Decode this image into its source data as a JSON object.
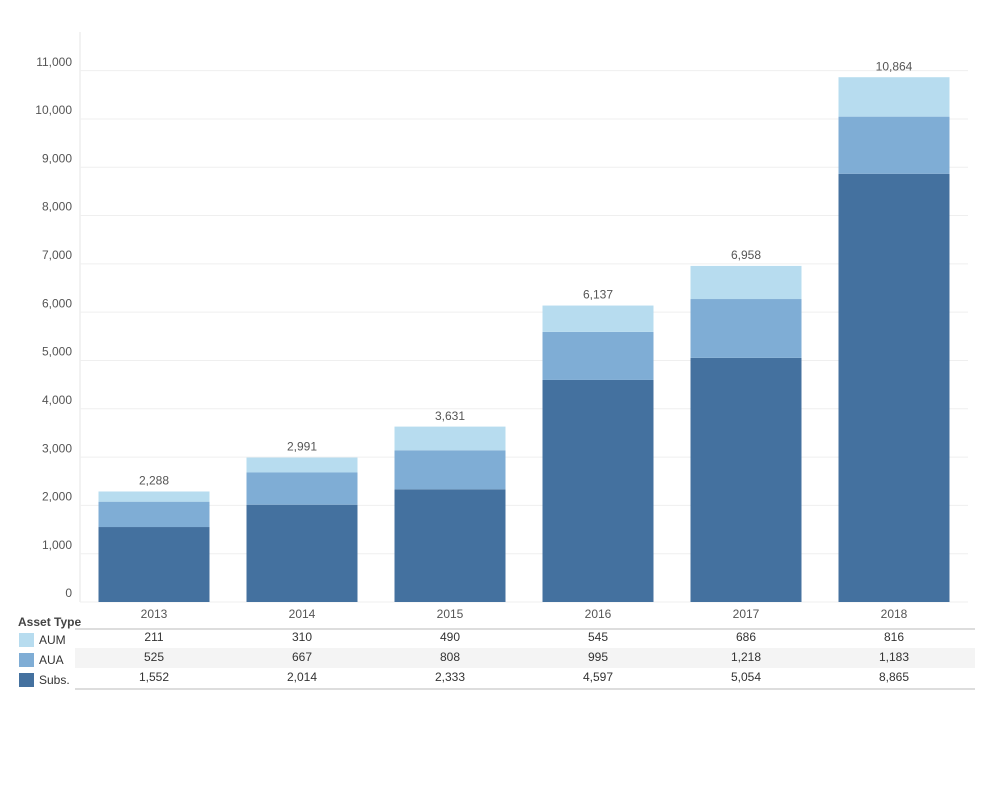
{
  "chart_data": {
    "type": "stacked_bar",
    "categories": [
      "2013",
      "2014",
      "2015",
      "2016",
      "2017",
      "2018"
    ],
    "series": [
      {
        "name": "AUM",
        "color": "#b7dcef",
        "values": [
          211,
          310,
          490,
          545,
          686,
          816
        ],
        "value_labels": [
          "211",
          "310",
          "490",
          "545",
          "686",
          "816"
        ]
      },
      {
        "name": "AUA",
        "color": "#7fadd5",
        "values": [
          525,
          667,
          808,
          995,
          1218,
          1183
        ],
        "value_labels": [
          "525",
          "667",
          "808",
          "995",
          "1,218",
          "1,183"
        ]
      },
      {
        "name": "Subs.",
        "color": "#44719f",
        "values": [
          1552,
          2014,
          2333,
          4597,
          5054,
          8865
        ],
        "value_labels": [
          "1,552",
          "2,014",
          "2,333",
          "4,597",
          "5,054",
          "8,865"
        ]
      }
    ],
    "totals": {
      "values": [
        2288,
        2991,
        3631,
        6137,
        6958,
        10864
      ],
      "value_labels": [
        "2,288",
        "2,991",
        "3,631",
        "6,137",
        "6,958",
        "10,864"
      ]
    },
    "legend_title": "Asset Type",
    "ylim": [
      0,
      11800
    ],
    "yticks": [
      0,
      {
        "value": 1000,
        "label": "1,000"
      },
      {
        "value": 2000,
        "label": "2,000"
      },
      {
        "value": 3000,
        "label": "3,000"
      },
      {
        "value": 4000,
        "label": "4,000"
      },
      {
        "value": 5000,
        "label": "5,000"
      },
      {
        "value": 6000,
        "label": "6,000"
      },
      {
        "value": 7000,
        "label": "7,000"
      },
      {
        "value": 8000,
        "label": "8,000"
      },
      {
        "value": 9000,
        "label": "9,000"
      },
      {
        "value": 10000,
        "label": "10,000"
      },
      {
        "value": 11000,
        "label": "11,000"
      }
    ],
    "grid": true
  }
}
